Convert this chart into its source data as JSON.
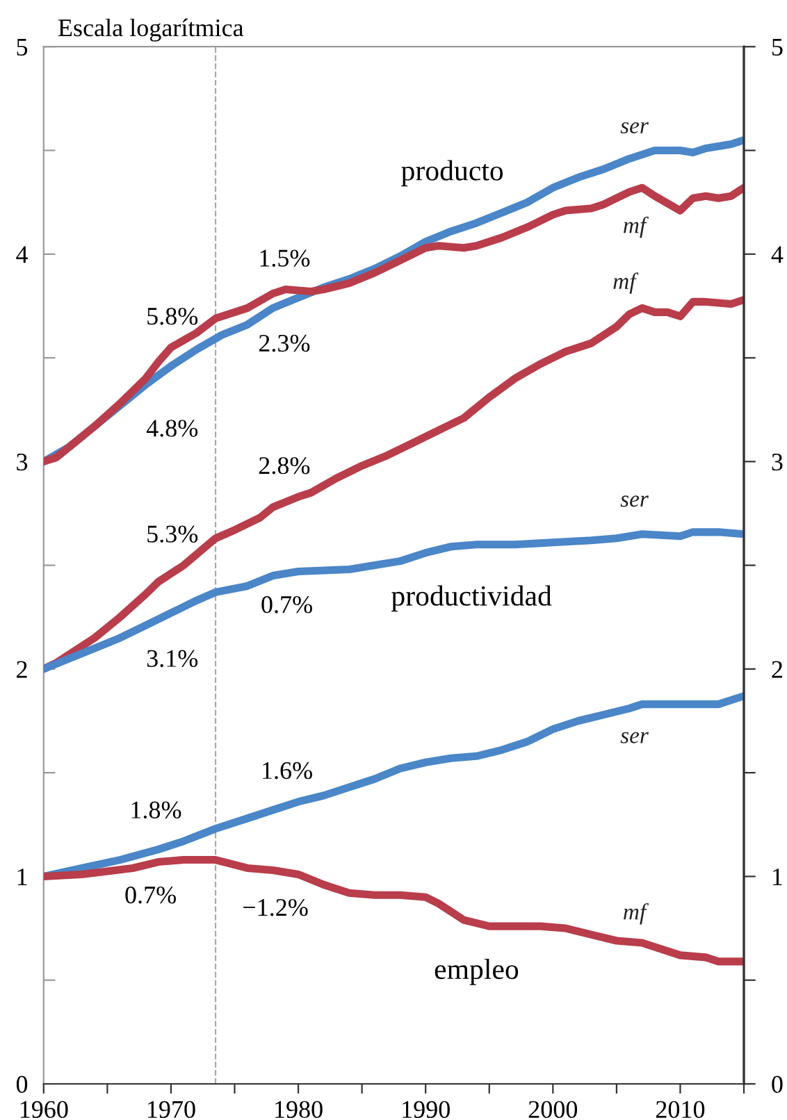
{
  "chart_data": {
    "type": "line",
    "ylabel": "Escala logarítmica",
    "series": [
      {
        "name": "ser",
        "color": "#4a86c8",
        "x": [
          1960,
          1962,
          1964,
          1966,
          1968,
          1970,
          1972,
          1974,
          1976,
          1978,
          1980,
          1982,
          1984,
          1986,
          1988,
          1990,
          1992,
          1994,
          1996,
          1998,
          2000,
          2002,
          2004,
          2006,
          2008,
          2010,
          2011,
          2012,
          2014,
          2015
        ],
        "values": [
          3.0,
          3.07,
          3.17,
          3.27,
          3.37,
          3.46,
          3.54,
          3.61,
          3.66,
          3.74,
          3.79,
          3.84,
          3.88,
          3.93,
          3.99,
          4.06,
          4.11,
          4.15,
          4.2,
          4.25,
          4.32,
          4.37,
          4.41,
          4.46,
          4.5,
          4.5,
          4.49,
          4.51,
          4.53,
          4.55
        ]
      },
      {
        "name": "mf",
        "color": "#b93d4b",
        "x": [
          1960,
          1961,
          1964,
          1966,
          1968,
          1969,
          1970,
          1972,
          1973.5,
          1976,
          1978,
          1979,
          1981,
          1982,
          1984,
          1986,
          1988,
          1990,
          1991,
          1993,
          1994,
          1996,
          1998,
          2000,
          2001,
          2003,
          2004,
          2006,
          2007,
          2008,
          2010,
          2011,
          2012,
          2013,
          2014,
          2015
        ],
        "values": [
          3.0,
          3.02,
          3.17,
          3.28,
          3.4,
          3.48,
          3.55,
          3.62,
          3.69,
          3.74,
          3.81,
          3.83,
          3.82,
          3.83,
          3.86,
          3.91,
          3.97,
          4.03,
          4.04,
          4.03,
          4.04,
          4.08,
          4.13,
          4.19,
          4.21,
          4.22,
          4.24,
          4.3,
          4.32,
          4.28,
          4.21,
          4.27,
          4.28,
          4.27,
          4.28,
          4.32
        ]
      },
      {
        "name": "mf",
        "color": "#b93d4b",
        "x": [
          1960,
          1961,
          1964,
          1966,
          1968,
          1969,
          1971,
          1973.5,
          1975,
          1977,
          1978,
          1980,
          1981,
          1983,
          1985,
          1987,
          1989,
          1991,
          1993,
          1995,
          1997,
          1999,
          2001,
          2003,
          2005,
          2006,
          2007,
          2008,
          2009,
          2010,
          2011,
          2012,
          2014,
          2015
        ],
        "values": [
          2.0,
          2.03,
          2.15,
          2.25,
          2.36,
          2.42,
          2.5,
          2.63,
          2.67,
          2.73,
          2.78,
          2.83,
          2.85,
          2.92,
          2.98,
          3.03,
          3.09,
          3.15,
          3.21,
          3.31,
          3.4,
          3.47,
          3.53,
          3.57,
          3.65,
          3.71,
          3.74,
          3.72,
          3.72,
          3.7,
          3.77,
          3.77,
          3.76,
          3.78
        ]
      },
      {
        "name": "ser",
        "color": "#4a86c8",
        "x": [
          1960,
          1962,
          1964,
          1966,
          1968,
          1970,
          1972,
          1973.5,
          1976,
          1978,
          1980,
          1984,
          1986,
          1988,
          1990,
          1992,
          1994,
          1997,
          2000,
          2003,
          2005,
          2007,
          2010,
          2011,
          2013,
          2015
        ],
        "values": [
          2.0,
          2.05,
          2.1,
          2.15,
          2.21,
          2.27,
          2.33,
          2.37,
          2.4,
          2.45,
          2.47,
          2.48,
          2.5,
          2.52,
          2.56,
          2.59,
          2.6,
          2.6,
          2.61,
          2.62,
          2.63,
          2.65,
          2.64,
          2.66,
          2.66,
          2.65
        ]
      },
      {
        "name": "ser",
        "color": "#4a86c8",
        "x": [
          1960,
          1963,
          1966,
          1969,
          1971,
          1973.5,
          1976,
          1978,
          1980,
          1982,
          1984,
          1986,
          1988,
          1990,
          1992,
          1994,
          1996,
          1998,
          2000,
          2002,
          2004,
          2006,
          2007,
          2010,
          2013,
          2015
        ],
        "values": [
          1.0,
          1.04,
          1.08,
          1.13,
          1.17,
          1.23,
          1.28,
          1.32,
          1.36,
          1.39,
          1.43,
          1.47,
          1.52,
          1.55,
          1.57,
          1.58,
          1.61,
          1.65,
          1.71,
          1.75,
          1.78,
          1.81,
          1.83,
          1.83,
          1.83,
          1.87
        ]
      },
      {
        "name": "mf",
        "color": "#b93d4b",
        "x": [
          1960,
          1963,
          1967,
          1969,
          1971,
          1973.5,
          1976,
          1978,
          1980,
          1982,
          1984,
          1986,
          1988,
          1990,
          1991,
          1993,
          1995,
          1997,
          1999,
          2001,
          2003,
          2005,
          2007,
          2010,
          2012,
          2013,
          2015
        ],
        "values": [
          1.0,
          1.01,
          1.04,
          1.07,
          1.08,
          1.08,
          1.04,
          1.03,
          1.01,
          0.96,
          0.92,
          0.91,
          0.91,
          0.9,
          0.87,
          0.79,
          0.76,
          0.76,
          0.76,
          0.75,
          0.72,
          0.69,
          0.68,
          0.62,
          0.61,
          0.59,
          0.59
        ]
      }
    ],
    "xlim": [
      1960,
      2015
    ],
    "xticks": [
      1960,
      {
        "value": 1965,
        "label": null
      },
      1970,
      {
        "value": 1975,
        "label": null
      },
      1980,
      {
        "value": 1985,
        "label": null
      },
      1990,
      {
        "value": 1995,
        "label": null
      },
      2000,
      {
        "value": 2005,
        "label": null
      },
      2010,
      {
        "value": 2015,
        "label": null
      }
    ],
    "ylim": [
      0,
      5
    ],
    "yticks": [
      0,
      {
        "value": 0.5,
        "label": null
      },
      1,
      {
        "value": 1.5,
        "label": null
      },
      2,
      {
        "value": 2.5,
        "label": null
      },
      3,
      {
        "value": 3.5,
        "label": null
      },
      4,
      {
        "value": 4.5,
        "label": null
      },
      5
    ],
    "y2lim": [
      0,
      5
    ],
    "y2ticks": [
      0,
      {
        "value": 0.5,
        "label": null
      },
      1,
      {
        "value": 1.5,
        "label": null
      },
      2,
      {
        "value": 2.5,
        "label": null
      },
      3,
      {
        "value": 3.5,
        "label": null
      },
      4,
      {
        "value": 4.5,
        "label": null
      },
      5
    ],
    "ref_lines": [
      {
        "axis": "x",
        "value": 1973.5,
        "label": null,
        "color": "#aaaaaa",
        "line_style": "dashed"
      }
    ],
    "annotations": [
      "producto",
      "productividad",
      "empleo",
      "5.8%",
      "1.5%",
      "2.3%",
      "4.8%",
      "2.8%",
      "5.3%",
      "0.7%",
      "3.1%",
      "1.6%",
      "1.8%",
      "0.7%",
      "−1.2%"
    ],
    "grid": false,
    "legend": false,
    "marker": "none",
    "line_style": "solid"
  }
}
